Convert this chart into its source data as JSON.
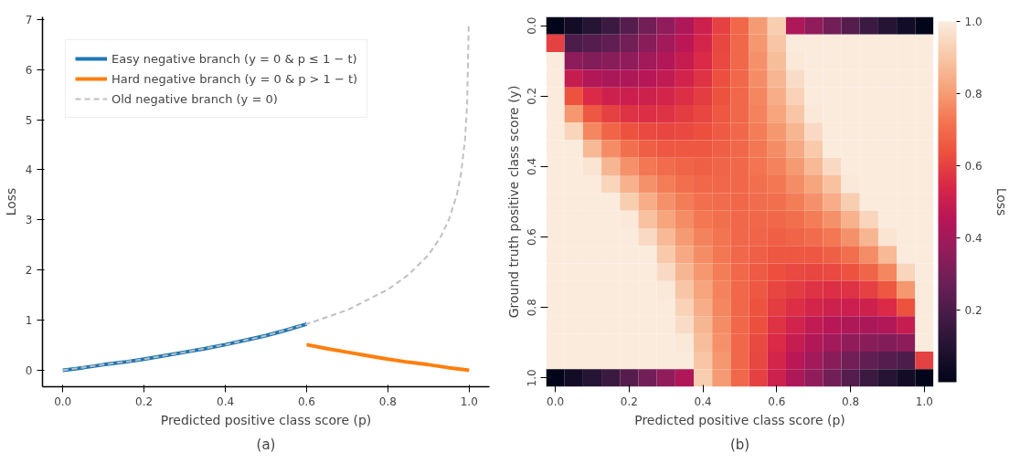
{
  "chart_data": [
    {
      "type": "line",
      "xlabel": "Predicted positive class score (p)",
      "ylabel": "Loss",
      "annotations": [
        "(a)"
      ],
      "xlim": [
        -0.05,
        1.05
      ],
      "ylim": [
        -0.33,
        7.05
      ],
      "xticks": [
        {
          "value": 0,
          "label": "0.0"
        },
        0.2,
        0.4,
        0.6,
        0.8,
        {
          "value": 1,
          "label": "1.0"
        }
      ],
      "yticks": [
        0,
        1,
        2,
        3,
        4,
        5,
        6,
        7
      ],
      "grid": false,
      "legend": "top left",
      "marker": "none",
      "series": [
        {
          "name": "Easy negative branch (y = 0 & p ≤ 1 − t)",
          "color": "#1f77b4",
          "line_style": "solid",
          "x": [
            0,
            0.05,
            0.1,
            0.15,
            0.2,
            0.25,
            0.3,
            0.35,
            0.4,
            0.45,
            0.5,
            0.55,
            0.6
          ],
          "values": [
            0,
            0.05,
            0.11,
            0.16,
            0.22,
            0.29,
            0.36,
            0.43,
            0.51,
            0.6,
            0.69,
            0.8,
            0.92
          ]
        },
        {
          "name": "Hard negative branch (y = 0 & p > 1 − t)",
          "color": "#ff7f0e",
          "line_style": "solid",
          "x": [
            0.6,
            0.65,
            0.7,
            0.75,
            0.8,
            0.85,
            0.9,
            0.95,
            1.0
          ],
          "values": [
            0.51,
            0.43,
            0.36,
            0.29,
            0.22,
            0.16,
            0.11,
            0.05,
            0
          ]
        },
        {
          "name": "Old negative branch (y = 0)",
          "color": "#c0c0c0",
          "line_style": "dashed",
          "x": [
            0,
            0.1,
            0.2,
            0.3,
            0.4,
            0.5,
            0.6,
            0.7,
            0.8,
            0.85,
            0.9,
            0.93,
            0.95,
            0.97,
            0.98,
            0.99,
            0.995,
            0.999
          ],
          "values": [
            0,
            0.11,
            0.22,
            0.36,
            0.51,
            0.69,
            0.92,
            1.2,
            1.61,
            1.9,
            2.3,
            2.66,
            3.0,
            3.51,
            3.91,
            4.61,
            5.3,
            6.91
          ]
        }
      ]
    },
    {
      "type": "heatmap",
      "xlabel": "Predicted positive class score (p)",
      "ylabel": "Ground truth positive class score (y)",
      "clabel": "Loss",
      "annotations": [
        "(b)"
      ],
      "categories": [
        "0.0",
        null,
        null,
        null,
        "0.2",
        null,
        null,
        null,
        "0.4",
        null,
        null,
        null,
        "0.6",
        null,
        null,
        null,
        "0.8",
        null,
        null,
        null,
        "1.0"
      ],
      "y_categories": [
        "0.0",
        null,
        null,
        null,
        "0.2",
        null,
        null,
        null,
        "0.4",
        null,
        null,
        null,
        "0.6",
        null,
        null,
        null,
        "0.8",
        null,
        null,
        null,
        "1.0"
      ],
      "clim": [
        0,
        1
      ],
      "cticks": [
        0.2,
        0.4,
        0.6,
        0.8,
        {
          "value": 1,
          "label": "1.0"
        }
      ],
      "cells": [
        [
          0,
          0.05,
          0.1,
          0.16,
          0.22,
          0.29,
          0.36,
          0.43,
          0.51,
          0.6,
          0.69,
          0.8,
          0.92,
          0.43,
          0.36,
          0.29,
          0.22,
          0.16,
          0.1,
          0.05,
          0
        ],
        [
          0.6,
          0.2,
          0.22,
          0.25,
          0.29,
          0.34,
          0.4,
          0.46,
          0.53,
          0.61,
          0.69,
          0.79,
          0.9,
          1,
          1,
          1,
          1,
          1,
          1,
          1,
          1
        ],
        [
          1,
          0.35,
          0.33,
          0.34,
          0.36,
          0.4,
          0.44,
          0.49,
          0.55,
          0.62,
          0.69,
          0.78,
          0.88,
          0.99,
          1,
          1,
          1,
          1,
          1,
          1,
          1
        ],
        [
          1,
          0.49,
          0.44,
          0.42,
          0.43,
          0.45,
          0.48,
          0.52,
          0.57,
          0.63,
          0.69,
          0.77,
          0.86,
          0.96,
          1,
          1,
          1,
          1,
          1,
          1,
          1
        ],
        [
          1,
          0.64,
          0.55,
          0.51,
          0.5,
          0.51,
          0.53,
          0.56,
          0.59,
          0.64,
          0.69,
          0.76,
          0.84,
          0.93,
          1,
          1,
          1,
          1,
          1,
          1,
          1
        ],
        [
          1,
          0.79,
          0.65,
          0.6,
          0.57,
          0.56,
          0.57,
          0.59,
          0.61,
          0.65,
          0.69,
          0.75,
          0.82,
          0.9,
          0.99,
          1,
          1,
          1,
          1,
          1,
          1
        ],
        [
          1,
          0.94,
          0.76,
          0.68,
          0.64,
          0.62,
          0.61,
          0.62,
          0.63,
          0.66,
          0.69,
          0.74,
          0.79,
          0.86,
          0.95,
          1,
          1,
          1,
          1,
          1,
          1
        ],
        [
          1,
          1,
          0.87,
          0.77,
          0.71,
          0.67,
          0.65,
          0.65,
          0.65,
          0.67,
          0.69,
          0.73,
          0.77,
          0.83,
          0.91,
          1,
          1,
          1,
          1,
          1,
          1
        ],
        [
          1,
          1,
          0.98,
          0.86,
          0.78,
          0.73,
          0.7,
          0.68,
          0.67,
          0.68,
          0.69,
          0.72,
          0.75,
          0.8,
          0.87,
          0.95,
          1,
          1,
          1,
          1,
          1
        ],
        [
          1,
          1,
          1,
          0.94,
          0.85,
          0.78,
          0.74,
          0.71,
          0.69,
          0.69,
          0.69,
          0.71,
          0.73,
          0.77,
          0.82,
          0.89,
          0.99,
          1,
          1,
          1,
          1
        ],
        [
          1,
          1,
          1,
          1,
          0.92,
          0.84,
          0.78,
          0.74,
          0.71,
          0.7,
          0.69,
          0.7,
          0.71,
          0.74,
          0.78,
          0.84,
          0.92,
          1,
          1,
          1,
          1
        ],
        [
          1,
          1,
          1,
          1,
          0.99,
          0.89,
          0.82,
          0.77,
          0.73,
          0.71,
          0.69,
          0.69,
          0.69,
          0.71,
          0.74,
          0.78,
          0.85,
          0.94,
          1,
          1,
          1
        ],
        [
          1,
          1,
          1,
          1,
          1,
          0.95,
          0.87,
          0.8,
          0.75,
          0.72,
          0.69,
          0.68,
          0.67,
          0.68,
          0.7,
          0.73,
          0.78,
          0.86,
          0.98,
          1,
          1
        ],
        [
          1,
          1,
          1,
          1,
          1,
          1,
          0.91,
          0.83,
          0.77,
          0.73,
          0.69,
          0.67,
          0.65,
          0.65,
          0.65,
          0.67,
          0.71,
          0.77,
          0.87,
          1,
          1
        ],
        [
          1,
          1,
          1,
          1,
          1,
          1,
          0.95,
          0.86,
          0.79,
          0.74,
          0.69,
          0.66,
          0.63,
          0.62,
          0.61,
          0.62,
          0.64,
          0.68,
          0.76,
          0.94,
          1
        ],
        [
          1,
          1,
          1,
          1,
          1,
          1,
          0.99,
          0.9,
          0.82,
          0.75,
          0.69,
          0.65,
          0.61,
          0.59,
          0.57,
          0.56,
          0.57,
          0.6,
          0.65,
          0.79,
          1
        ],
        [
          1,
          1,
          1,
          1,
          1,
          1,
          1,
          0.93,
          0.84,
          0.76,
          0.69,
          0.64,
          0.59,
          0.56,
          0.53,
          0.51,
          0.5,
          0.51,
          0.55,
          0.64,
          1
        ],
        [
          1,
          1,
          1,
          1,
          1,
          1,
          1,
          0.96,
          0.86,
          0.77,
          0.69,
          0.63,
          0.57,
          0.52,
          0.48,
          0.45,
          0.43,
          0.42,
          0.44,
          0.49,
          1
        ],
        [
          1,
          1,
          1,
          1,
          1,
          1,
          1,
          0.99,
          0.88,
          0.78,
          0.69,
          0.62,
          0.55,
          0.49,
          0.44,
          0.4,
          0.36,
          0.34,
          0.33,
          0.35,
          1
        ],
        [
          1,
          1,
          1,
          1,
          1,
          1,
          1,
          1,
          0.9,
          0.79,
          0.69,
          0.61,
          0.53,
          0.46,
          0.4,
          0.34,
          0.29,
          0.25,
          0.22,
          0.2,
          0.6
        ],
        [
          0,
          0.05,
          0.1,
          0.16,
          0.22,
          0.29,
          0.36,
          0.43,
          0.92,
          0.8,
          0.69,
          0.6,
          0.51,
          0.43,
          0.36,
          0.29,
          0.22,
          0.16,
          0.1,
          0.05,
          0
        ]
      ]
    }
  ]
}
